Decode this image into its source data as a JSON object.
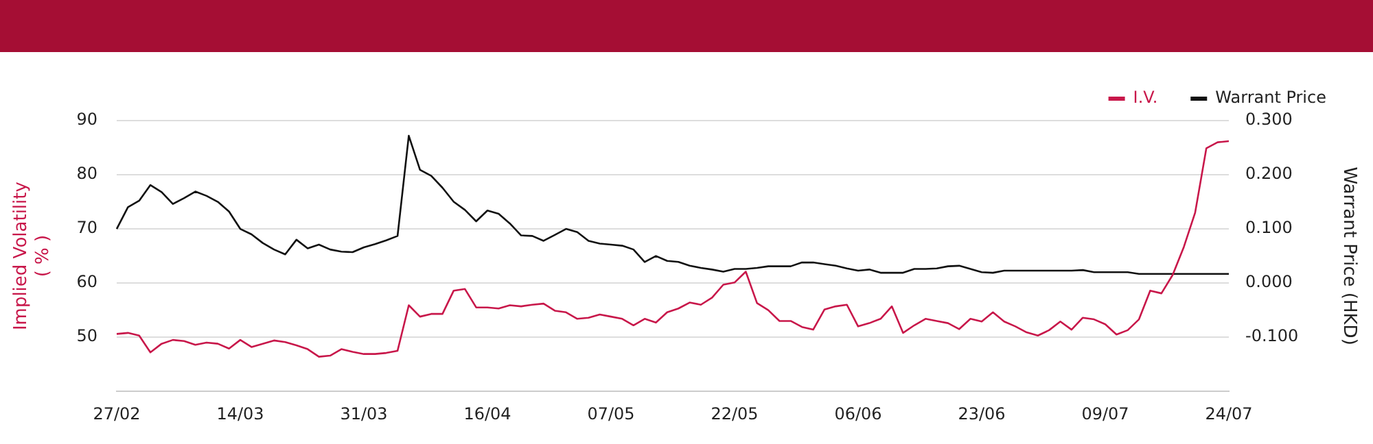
{
  "chart_data": {
    "type": "line",
    "categories": [
      "27/02",
      null,
      null,
      null,
      null,
      null,
      null,
      null,
      null,
      null,
      null,
      "14/03",
      null,
      null,
      null,
      null,
      null,
      null,
      null,
      null,
      null,
      null,
      "31/03",
      null,
      null,
      null,
      null,
      null,
      null,
      null,
      null,
      null,
      null,
      "16/04",
      null,
      null,
      null,
      null,
      null,
      null,
      null,
      null,
      null,
      null,
      "07/05",
      null,
      null,
      null,
      null,
      null,
      null,
      null,
      null,
      null,
      null,
      "22/05",
      null,
      null,
      null,
      null,
      null,
      null,
      null,
      null,
      null,
      null,
      "06/06",
      null,
      null,
      null,
      null,
      null,
      null,
      null,
      null,
      null,
      null,
      "23/06",
      null,
      null,
      null,
      null,
      null,
      null,
      null,
      null,
      null,
      null,
      "09/07",
      null,
      null,
      null,
      null,
      null,
      null,
      null,
      null,
      null,
      null,
      "24/07"
    ],
    "series": [
      {
        "name": "I.V.",
        "color": "#c8174a",
        "values": [
          50.6,
          50.8,
          50.3,
          47.2,
          48.8,
          49.5,
          49.3,
          48.6,
          49.0,
          48.8,
          47.9,
          49.5,
          48.2,
          48.8,
          49.4,
          49.1,
          48.5,
          47.8,
          46.4,
          46.6,
          47.8,
          47.3,
          46.9,
          46.9,
          47.1,
          47.5,
          55.9,
          53.8,
          54.3,
          54.3,
          58.6,
          58.9,
          55.5,
          55.5,
          55.3,
          55.9,
          55.7,
          56.0,
          56.2,
          54.9,
          54.6,
          53.4,
          53.6,
          54.2,
          53.8,
          53.4,
          52.2,
          53.4,
          52.7,
          54.6,
          55.3,
          56.4,
          56.0,
          57.3,
          59.7,
          60.1,
          62.1,
          56.3,
          55.0,
          53.0,
          53.0,
          51.9,
          51.4,
          55.1,
          55.7,
          56.0,
          52.0,
          52.6,
          53.4,
          55.7,
          50.8,
          52.2,
          53.4,
          53.0,
          52.6,
          51.5,
          53.4,
          52.9,
          54.6,
          52.9,
          52.0,
          50.9,
          50.3,
          51.3,
          52.9,
          51.4,
          53.6,
          53.3,
          52.4,
          50.5,
          51.3,
          53.3,
          58.6,
          58.1,
          61.5,
          66.7,
          73.0,
          84.9,
          86.0,
          86.2
        ]
      },
      {
        "name": "Warrant Price",
        "color": "#111111",
        "axis": "y2",
        "values": [
          0.1,
          0.14,
          0.152,
          0.181,
          0.168,
          0.146,
          0.157,
          0.169,
          0.161,
          0.15,
          0.132,
          0.1,
          0.09,
          0.074,
          0.062,
          0.053,
          0.08,
          0.064,
          0.071,
          0.062,
          0.058,
          0.057,
          0.066,
          0.072,
          0.079,
          0.087,
          0.272,
          0.209,
          0.198,
          0.176,
          0.15,
          0.135,
          0.114,
          0.134,
          0.128,
          0.11,
          0.088,
          0.087,
          0.078,
          0.089,
          0.1,
          0.094,
          0.078,
          0.073,
          0.071,
          0.069,
          0.062,
          0.039,
          0.05,
          0.041,
          0.039,
          0.032,
          0.028,
          0.025,
          0.021,
          0.026,
          0.026,
          0.028,
          0.031,
          0.031,
          0.031,
          0.038,
          0.038,
          0.035,
          0.032,
          0.027,
          0.023,
          0.025,
          0.019,
          0.019,
          0.019,
          0.026,
          0.026,
          0.027,
          0.031,
          0.032,
          0.026,
          0.02,
          0.019,
          0.023,
          0.023,
          0.023,
          0.023,
          0.023,
          0.023,
          0.023,
          0.024,
          0.02,
          0.02,
          0.02,
          0.02,
          0.017,
          0.017,
          0.017,
          0.017,
          0.017,
          0.017,
          0.017,
          0.017,
          0.017
        ]
      }
    ],
    "ylabel": "Implied Volatility\n( % )",
    "y2label": "Warrant Price (HKD)",
    "ylim": [
      40,
      90
    ],
    "yticks": [
      50,
      60,
      70,
      80,
      90
    ],
    "y2lim": [
      -0.2,
      0.3
    ],
    "y2ticks": [
      {
        "value": -0.1,
        "label": "-0.100"
      },
      {
        "value": 0,
        "label": "0.000"
      },
      {
        "value": 0.1,
        "label": "0.100"
      },
      {
        "value": 0.2,
        "label": "0.200"
      },
      {
        "value": 0.3,
        "label": "0.300"
      }
    ],
    "grid": "y",
    "legend": "top right",
    "marker": "none",
    "line_style": "solid"
  }
}
